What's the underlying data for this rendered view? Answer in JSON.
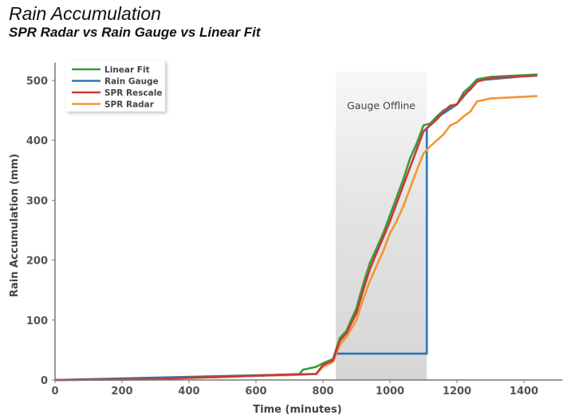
{
  "chart_data": {
    "type": "line",
    "title": "Rain Accumulation",
    "subtitle": "SPR Radar vs Rain Gauge vs Linear Fit",
    "xlabel": "Time (minutes)",
    "ylabel": "Rain Accumulation (mm)",
    "xlim": [
      0,
      1515
    ],
    "ylim": [
      0,
      530
    ],
    "xticks": [
      0,
      200,
      400,
      600,
      800,
      1000,
      1200,
      1400
    ],
    "yticks": [
      0,
      100,
      200,
      300,
      400,
      500
    ],
    "grid": false,
    "legend_position": "top-left",
    "annotation": {
      "label": "Gauge Offline",
      "x_start": 838,
      "x_end": 1110
    },
    "series": [
      {
        "name": "Linear Fit",
        "color": "#3a9c3a",
        "points": [
          [
            0,
            0
          ],
          [
            300,
            1
          ],
          [
            400,
            4
          ],
          [
            500,
            5
          ],
          [
            600,
            7
          ],
          [
            700,
            9
          ],
          [
            730,
            10
          ],
          [
            740,
            17
          ],
          [
            780,
            22
          ],
          [
            800,
            28
          ],
          [
            830,
            35
          ],
          [
            850,
            70
          ],
          [
            870,
            82
          ],
          [
            900,
            120
          ],
          [
            920,
            160
          ],
          [
            940,
            195
          ],
          [
            960,
            220
          ],
          [
            980,
            245
          ],
          [
            1000,
            275
          ],
          [
            1020,
            305
          ],
          [
            1040,
            335
          ],
          [
            1060,
            370
          ],
          [
            1080,
            395
          ],
          [
            1100,
            425
          ],
          [
            1120,
            428
          ],
          [
            1140,
            440
          ],
          [
            1160,
            450
          ],
          [
            1180,
            455
          ],
          [
            1200,
            460
          ],
          [
            1220,
            480
          ],
          [
            1240,
            490
          ],
          [
            1260,
            502
          ],
          [
            1300,
            506
          ],
          [
            1440,
            510
          ]
        ]
      },
      {
        "name": "Rain Gauge",
        "color": "#2e75b6",
        "points": [
          [
            0,
            0
          ],
          [
            700,
            9
          ],
          [
            780,
            10
          ],
          [
            800,
            25
          ],
          [
            830,
            35
          ],
          [
            836,
            44
          ],
          [
            1110,
            44
          ],
          [
            1110,
            420
          ],
          [
            1140,
            438
          ],
          [
            1200,
            460
          ],
          [
            1260,
            500
          ],
          [
            1440,
            509
          ]
        ]
      },
      {
        "name": "SPR Rescale",
        "color": "#c9393b",
        "points": [
          [
            0,
            0
          ],
          [
            300,
            1
          ],
          [
            400,
            4
          ],
          [
            500,
            5
          ],
          [
            600,
            7
          ],
          [
            700,
            9
          ],
          [
            780,
            10
          ],
          [
            800,
            25
          ],
          [
            830,
            33
          ],
          [
            850,
            65
          ],
          [
            870,
            78
          ],
          [
            900,
            112
          ],
          [
            920,
            150
          ],
          [
            940,
            185
          ],
          [
            960,
            212
          ],
          [
            980,
            238
          ],
          [
            1000,
            265
          ],
          [
            1020,
            295
          ],
          [
            1040,
            325
          ],
          [
            1060,
            355
          ],
          [
            1080,
            385
          ],
          [
            1100,
            415
          ],
          [
            1120,
            425
          ],
          [
            1140,
            435
          ],
          [
            1160,
            448
          ],
          [
            1180,
            458
          ],
          [
            1200,
            460
          ],
          [
            1220,
            475
          ],
          [
            1240,
            485
          ],
          [
            1260,
            498
          ],
          [
            1300,
            504
          ],
          [
            1440,
            508
          ]
        ]
      },
      {
        "name": "SPR Radar",
        "color": "#f4962f",
        "points": [
          [
            0,
            0
          ],
          [
            300,
            1
          ],
          [
            400,
            3
          ],
          [
            500,
            5
          ],
          [
            600,
            7
          ],
          [
            700,
            8
          ],
          [
            780,
            10
          ],
          [
            800,
            22
          ],
          [
            830,
            30
          ],
          [
            850,
            58
          ],
          [
            870,
            72
          ],
          [
            900,
            100
          ],
          [
            920,
            135
          ],
          [
            940,
            165
          ],
          [
            960,
            190
          ],
          [
            980,
            215
          ],
          [
            1000,
            245
          ],
          [
            1020,
            265
          ],
          [
            1040,
            290
          ],
          [
            1060,
            320
          ],
          [
            1080,
            350
          ],
          [
            1100,
            378
          ],
          [
            1120,
            390
          ],
          [
            1140,
            400
          ],
          [
            1160,
            410
          ],
          [
            1180,
            425
          ],
          [
            1200,
            430
          ],
          [
            1220,
            440
          ],
          [
            1240,
            448
          ],
          [
            1260,
            465
          ],
          [
            1300,
            470
          ],
          [
            1440,
            474
          ]
        ]
      }
    ]
  }
}
